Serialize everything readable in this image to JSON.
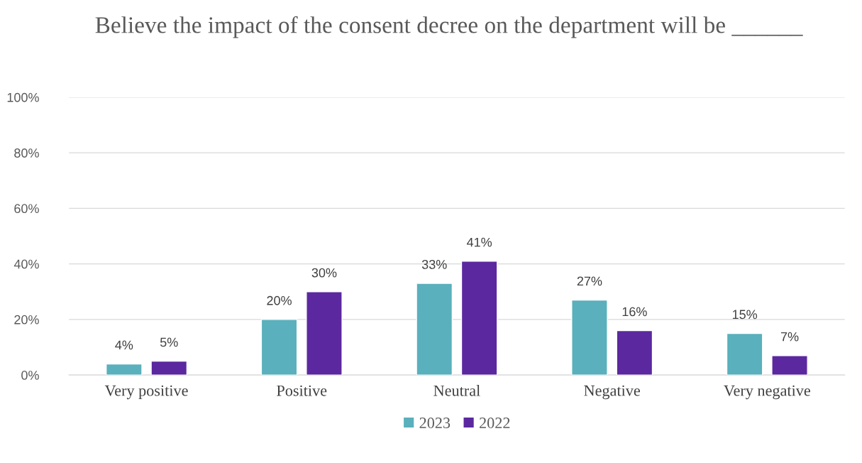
{
  "chart_data": {
    "type": "bar",
    "title": "Believe the impact of the consent decree on the department will be ______",
    "categories": [
      "Very positive",
      "Positive",
      "Neutral",
      "Negative",
      "Very negative"
    ],
    "series": [
      {
        "name": "2023",
        "color": "#5ab0bc",
        "values": [
          4,
          20,
          33,
          27,
          15
        ],
        "value_labels": [
          "4%",
          "20%",
          "33%",
          "27%",
          "15%"
        ]
      },
      {
        "name": "2022",
        "color": "#5b289f",
        "values": [
          5,
          30,
          41,
          16,
          7
        ],
        "value_labels": [
          "5%",
          "30%",
          "41%",
          "16%",
          "7%"
        ]
      }
    ],
    "ylim": [
      0,
      100
    ],
    "yticks": [
      {
        "value": 0,
        "label": "0%"
      },
      {
        "value": 20,
        "label": "20%"
      },
      {
        "value": 40,
        "label": "40%"
      },
      {
        "value": 60,
        "label": "60%"
      },
      {
        "value": 80,
        "label": "80%"
      },
      {
        "value": 100,
        "label": "100%"
      }
    ],
    "grid": "y",
    "legend": "bottom"
  }
}
